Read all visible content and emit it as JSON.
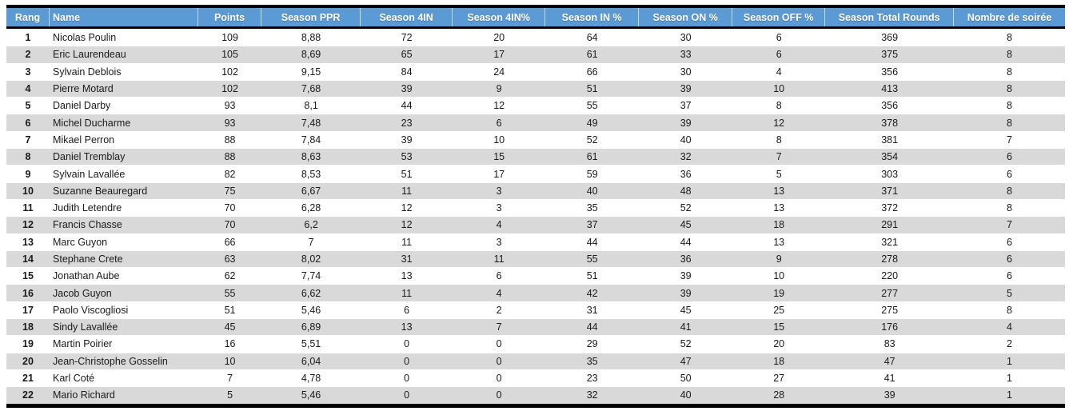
{
  "colors": {
    "header_bg": "#5B9BD5",
    "header_text": "#FFFFFF",
    "band_row_bg": "#D9D9D9",
    "white_row_bg": "#FFFFFF",
    "border": "#000000"
  },
  "table": {
    "title": "season-leaderboard",
    "columns": [
      {
        "key": "rang",
        "label": "Rang",
        "align": "center"
      },
      {
        "key": "name",
        "label": "Name",
        "align": "left"
      },
      {
        "key": "points",
        "label": "Points",
        "align": "center"
      },
      {
        "key": "season_ppr",
        "label": "Season PPR",
        "align": "center"
      },
      {
        "key": "season_4in",
        "label": "Season 4IN",
        "align": "center"
      },
      {
        "key": "season_4in_pct",
        "label": "Season 4IN%",
        "align": "center"
      },
      {
        "key": "season_in_pct",
        "label": "Season IN %",
        "align": "center"
      },
      {
        "key": "season_on_pct",
        "label": "Season ON %",
        "align": "center"
      },
      {
        "key": "season_off_pct",
        "label": "Season OFF %",
        "align": "center"
      },
      {
        "key": "season_total_rounds",
        "label": "Season Total Rounds",
        "align": "center"
      },
      {
        "key": "nombre_de_soiree",
        "label": "Nombre de soirée",
        "align": "center"
      }
    ],
    "rows": [
      [
        "1",
        "Nicolas Poulin",
        "109",
        "8,88",
        "72",
        "20",
        "64",
        "30",
        "6",
        "369",
        "8"
      ],
      [
        "2",
        "Eric Laurendeau",
        "105",
        "8,69",
        "65",
        "17",
        "61",
        "33",
        "6",
        "375",
        "8"
      ],
      [
        "3",
        "Sylvain Deblois",
        "102",
        "9,15",
        "84",
        "24",
        "66",
        "30",
        "4",
        "356",
        "8"
      ],
      [
        "4",
        "Pierre Motard",
        "102",
        "7,68",
        "39",
        "9",
        "51",
        "39",
        "10",
        "413",
        "8"
      ],
      [
        "5",
        "Daniel Darby",
        "93",
        "8,1",
        "44",
        "12",
        "55",
        "37",
        "8",
        "356",
        "8"
      ],
      [
        "6",
        "Michel Ducharme",
        "93",
        "7,48",
        "23",
        "6",
        "49",
        "39",
        "12",
        "378",
        "8"
      ],
      [
        "7",
        "Mikael Perron",
        "88",
        "7,84",
        "39",
        "10",
        "52",
        "40",
        "8",
        "381",
        "7"
      ],
      [
        "8",
        "Daniel Tremblay",
        "88",
        "8,63",
        "53",
        "15",
        "61",
        "32",
        "7",
        "354",
        "6"
      ],
      [
        "9",
        "Sylvain Lavallée",
        "82",
        "8,53",
        "51",
        "17",
        "59",
        "36",
        "5",
        "303",
        "6"
      ],
      [
        "10",
        "Suzanne Beauregard",
        "75",
        "6,67",
        "11",
        "3",
        "40",
        "48",
        "13",
        "371",
        "8"
      ],
      [
        "11",
        "Judith Letendre",
        "70",
        "6,28",
        "12",
        "3",
        "35",
        "52",
        "13",
        "372",
        "8"
      ],
      [
        "12",
        "Francis Chasse",
        "70",
        "6,2",
        "12",
        "4",
        "37",
        "45",
        "18",
        "291",
        "7"
      ],
      [
        "13",
        "Marc Guyon",
        "66",
        "7",
        "11",
        "3",
        "44",
        "44",
        "13",
        "321",
        "6"
      ],
      [
        "14",
        "Stephane Crete",
        "63",
        "8,02",
        "31",
        "11",
        "55",
        "36",
        "9",
        "278",
        "6"
      ],
      [
        "15",
        "Jonathan Aube",
        "62",
        "7,74",
        "13",
        "6",
        "51",
        "39",
        "10",
        "220",
        "6"
      ],
      [
        "16",
        "Jacob Guyon",
        "55",
        "6,62",
        "11",
        "4",
        "42",
        "39",
        "19",
        "277",
        "5"
      ],
      [
        "17",
        "Paolo Viscogliosi",
        "51",
        "5,46",
        "6",
        "2",
        "31",
        "45",
        "25",
        "275",
        "8"
      ],
      [
        "18",
        "Sindy Lavallée",
        "45",
        "6,89",
        "13",
        "7",
        "44",
        "41",
        "15",
        "176",
        "4"
      ],
      [
        "19",
        "Martin Poirier",
        "16",
        "5,51",
        "0",
        "0",
        "29",
        "52",
        "20",
        "83",
        "2"
      ],
      [
        "20",
        "Jean-Christophe Gosselin",
        "10",
        "6,04",
        "0",
        "0",
        "35",
        "47",
        "18",
        "47",
        "1"
      ],
      [
        "21",
        "Karl Coté",
        "7",
        "4,78",
        "0",
        "0",
        "23",
        "50",
        "27",
        "41",
        "1"
      ],
      [
        "22",
        "Mario Richard",
        "5",
        "5,46",
        "0",
        "0",
        "32",
        "40",
        "28",
        "39",
        "1"
      ]
    ]
  }
}
